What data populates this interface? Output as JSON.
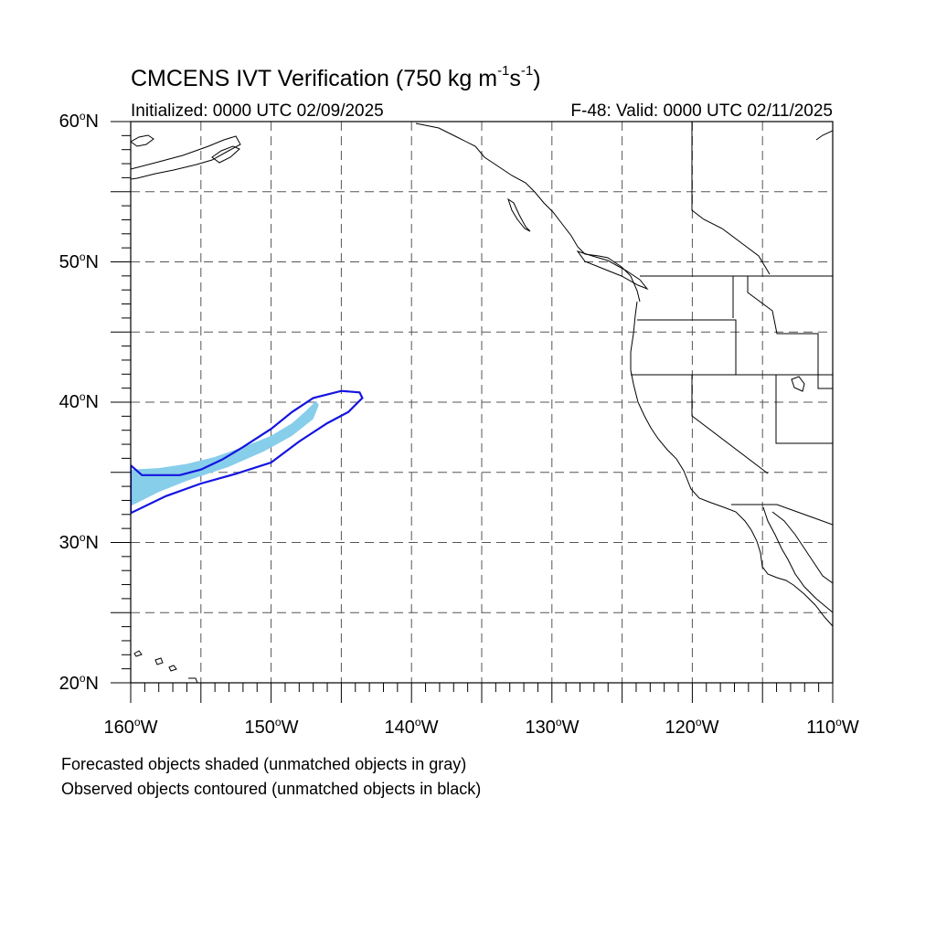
{
  "title": {
    "main": "CMCENS IVT Verification (750 kg m",
    "exp1": "-1",
    "mid": "s",
    "exp2": "-1",
    "end": ")"
  },
  "initialized": "Initialized: 0000 UTC 02/09/2025",
  "valid": "F-48: Valid: 0000 UTC 02/11/2025",
  "lat_labels": [
    {
      "num": "60",
      "unit": "o",
      "hemi": "N"
    },
    {
      "num": "50",
      "unit": "o",
      "hemi": "N"
    },
    {
      "num": "40",
      "unit": "o",
      "hemi": "N"
    },
    {
      "num": "30",
      "unit": "o",
      "hemi": "N"
    },
    {
      "num": "20",
      "unit": "o",
      "hemi": "N"
    }
  ],
  "lon_labels": [
    {
      "num": "160",
      "unit": "o",
      "hemi": "W"
    },
    {
      "num": "150",
      "unit": "o",
      "hemi": "W"
    },
    {
      "num": "140",
      "unit": "o",
      "hemi": "W"
    },
    {
      "num": "130",
      "unit": "o",
      "hemi": "W"
    },
    {
      "num": "120",
      "unit": "o",
      "hemi": "W"
    },
    {
      "num": "110",
      "unit": "o",
      "hemi": "W"
    }
  ],
  "captions": {
    "line1": "Forecasted objects shaded (unmatched objects in gray)",
    "line2": "Observed objects contoured (unmatched objects in black)"
  },
  "map": {
    "lon_range": [
      -160,
      -110
    ],
    "lat_range": [
      20,
      60
    ],
    "grid_spacing_deg": 5,
    "grid_style": "dashed",
    "colors": {
      "forecast_fill": "#87ceeb",
      "observed_contour": "#1414e0",
      "coastline": "#000000",
      "grid": "#555555"
    },
    "forecast_object_lonlat": [
      [
        -160,
        35.2
      ],
      [
        -158,
        35.3
      ],
      [
        -156,
        35.6
      ],
      [
        -154,
        36.1
      ],
      [
        -152,
        36.8
      ],
      [
        -150,
        37.6
      ],
      [
        -148.5,
        38.5
      ],
      [
        -147.5,
        39.4
      ],
      [
        -146.8,
        40.1
      ],
      [
        -146.6,
        39.8
      ],
      [
        -147,
        38.8
      ],
      [
        -148.5,
        37.6
      ],
      [
        -150.5,
        36.5
      ],
      [
        -153,
        35.4
      ],
      [
        -156,
        34.4
      ],
      [
        -158,
        33.6
      ],
      [
        -160,
        32.6
      ]
    ],
    "observed_object_lonlat": [
      [
        -160,
        35.5
      ],
      [
        -159.2,
        34.8
      ],
      [
        -156.5,
        34.8
      ],
      [
        -155,
        35.2
      ],
      [
        -153.5,
        35.9
      ],
      [
        -152,
        36.8
      ],
      [
        -150,
        38.1
      ],
      [
        -148.5,
        39.3
      ],
      [
        -147,
        40.3
      ],
      [
        -145,
        40.8
      ],
      [
        -143.7,
        40.7
      ],
      [
        -143.5,
        40.3
      ],
      [
        -144.5,
        39.3
      ],
      [
        -146,
        38.5
      ],
      [
        -148,
        37.2
      ],
      [
        -150,
        35.7
      ],
      [
        -152.5,
        34.9
      ],
      [
        -155,
        34.2
      ],
      [
        -157.5,
        33.3
      ],
      [
        -160,
        32.1
      ]
    ]
  }
}
